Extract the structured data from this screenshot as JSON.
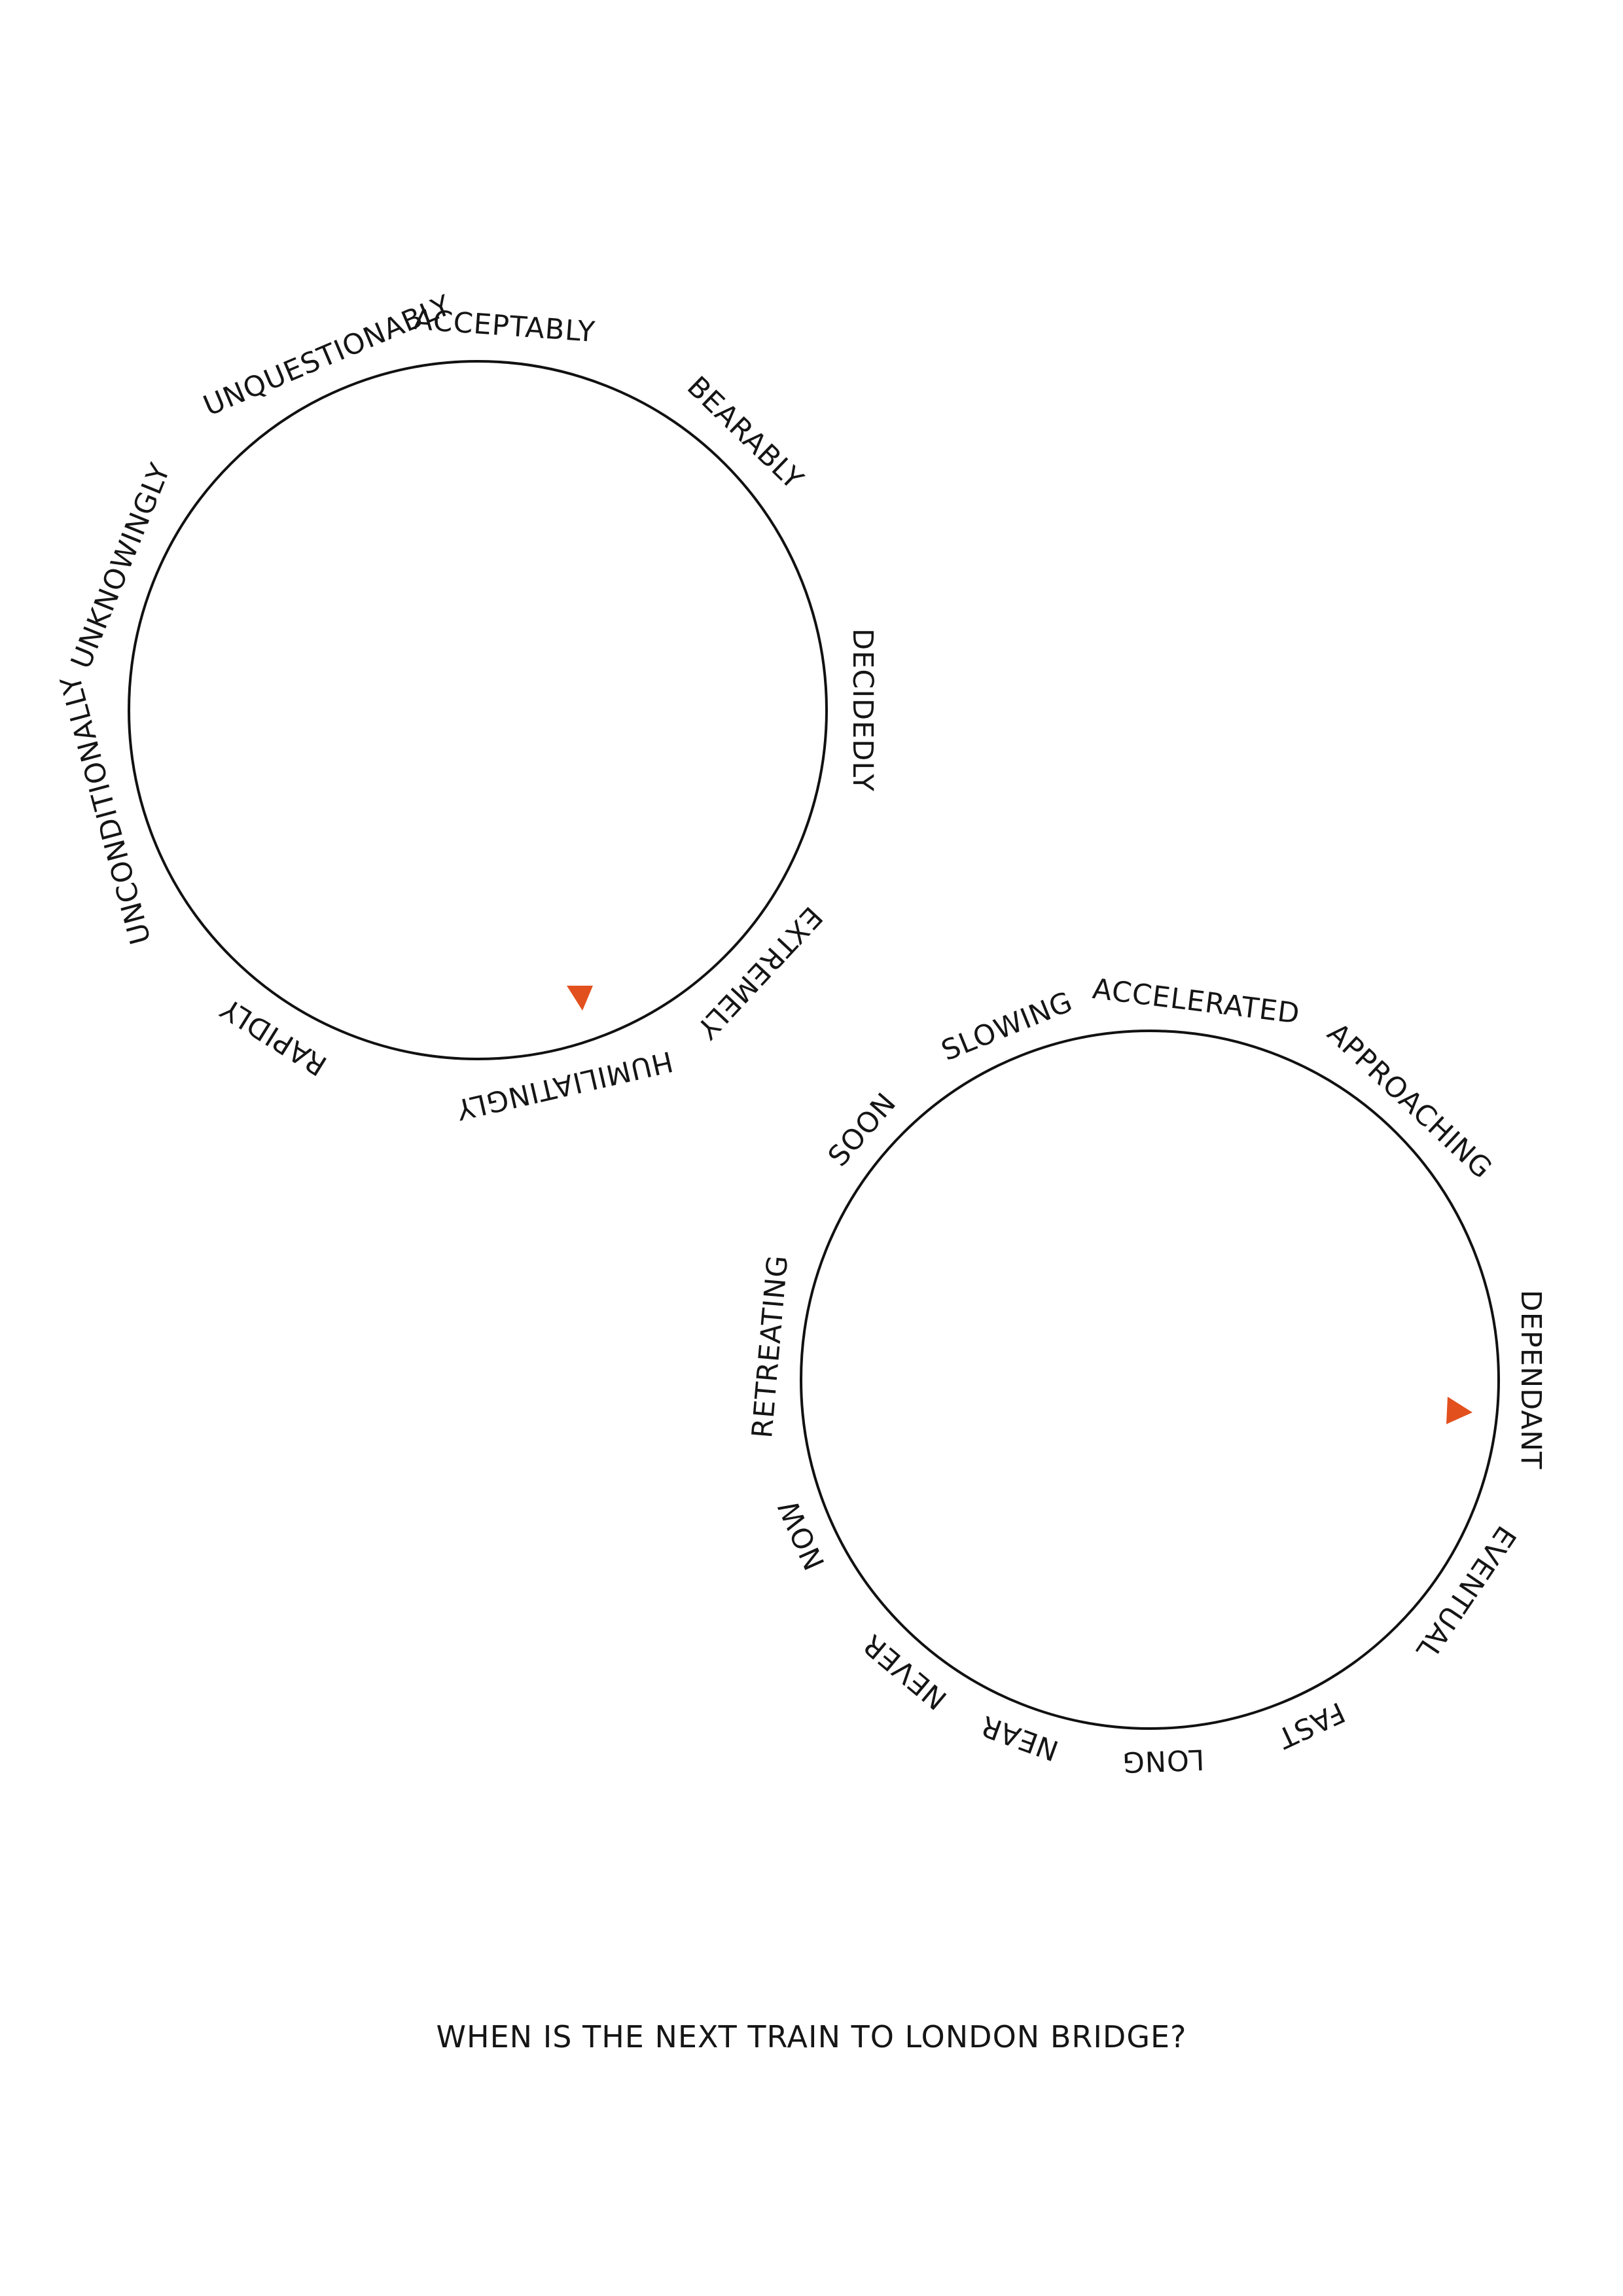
{
  "colors": {
    "ink": "#151515",
    "pointer": "#e2501e",
    "background": "#ffffff"
  },
  "dials": [
    {
      "name": "adverbs",
      "words": [
        "ACCEPTABLY",
        "BEARABLY",
        "DECIDEDLY",
        "EXTREMELY",
        "HUMILIATINGLY",
        "RAPIDLY",
        "UNCONDITIONALLY",
        "UNKNOWINGLY",
        "UNQUESTIONABLY"
      ],
      "pointer_icon": "triangle-pointer-icon",
      "pointer_at": "HUMILIATINGLY"
    },
    {
      "name": "adjectives",
      "words": [
        "ACCELERATED",
        "APPROACHING",
        "DEPENDANT",
        "EVENTUAL",
        "FAST",
        "LONG",
        "NEAR",
        "NEVER",
        "NOW",
        "RETREATING",
        "SOON",
        "SLOWING"
      ],
      "pointer_icon": "triangle-pointer-icon",
      "pointer_at": "DEPENDANT"
    }
  ],
  "question": "WHEN IS THE NEXT TRAIN TO LONDON BRIDGE?"
}
